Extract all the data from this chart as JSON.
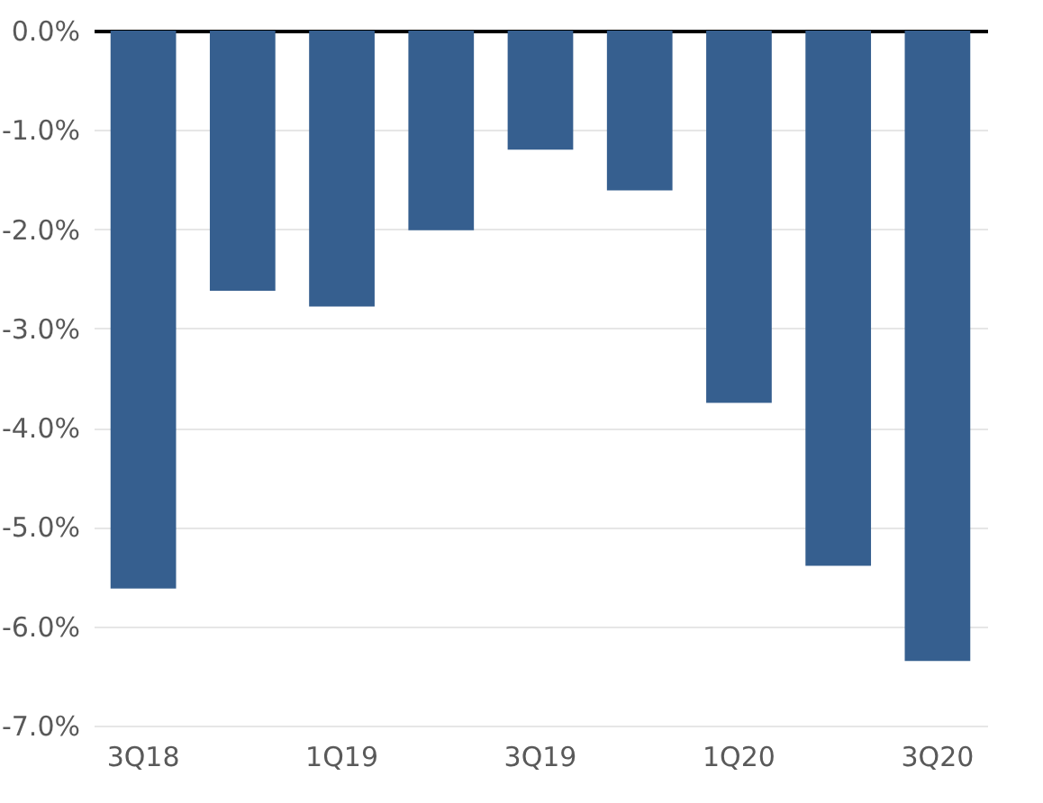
{
  "chart_data": {
    "type": "bar",
    "categories": [
      "3Q18",
      null,
      "1Q19",
      null,
      "3Q19",
      null,
      "1Q20",
      null,
      "3Q20"
    ],
    "values": [
      -5.62,
      -2.62,
      -2.78,
      -2.01,
      -1.2,
      -1.61,
      -3.75,
      -5.39,
      -6.35
    ],
    "color": "#365f8f",
    "ylim": [
      -7,
      0
    ],
    "yticks": [
      {
        "value": 0,
        "label": "0.0%"
      },
      {
        "value": -1,
        "label": "-1.0%"
      },
      {
        "value": -2,
        "label": "-2.0%"
      },
      {
        "value": -3,
        "label": "-3.0%"
      },
      {
        "value": -4,
        "label": "-4.0%"
      },
      {
        "value": -5,
        "label": "-5.0%"
      },
      {
        "value": -6,
        "label": "-6.0%"
      },
      {
        "value": -7,
        "label": "-7.0%"
      }
    ],
    "grid": "y"
  }
}
